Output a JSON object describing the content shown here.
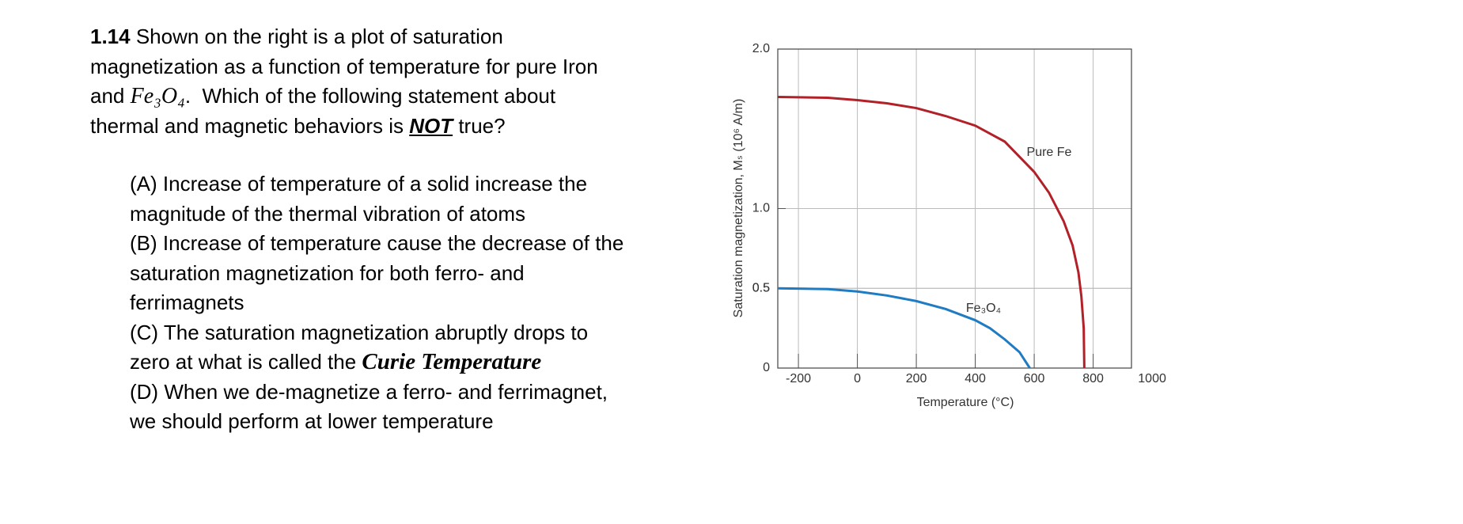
{
  "question": {
    "number": "1.14",
    "lines": [
      [
        " Shown on the right is a plot of saturation"
      ],
      [
        "magnetization as a function of temperature for pure Iron"
      ],
      [
        "and ",
        "Fe₃O₄",
        ".  Which of the following statement about"
      ],
      [
        "thermal and magnetic behaviors is ",
        "NOT",
        " true?"
      ]
    ]
  },
  "options": [
    [
      "(A) Increase of temperature of a solid increase the"
    ],
    [
      "magnitude of the thermal vibration of atoms"
    ],
    [
      "(B) Increase of temperature cause the decrease of the"
    ],
    [
      "saturation magnetization for both ferro- and"
    ],
    [
      "ferrimagnets"
    ],
    [
      "(C) The saturation magnetization abruptly drops to"
    ],
    [
      "zero at what is called the ",
      "Curie Temperature"
    ],
    [
      "(D) When we de-magnetize a ferro- and ferrimagnet,"
    ],
    [
      "we should perform at lower temperature"
    ]
  ],
  "chart_data": {
    "type": "line",
    "xlabel": "Temperature (°C)",
    "ylabel": "Saturation magnetization, Mₛ (10⁶ A/m)",
    "xlim": [
      -270,
      930
    ],
    "ylim": [
      0,
      2.0
    ],
    "xticks": [
      -200,
      0,
      200,
      400,
      600,
      800,
      1000
    ],
    "yticks": [
      0,
      0.5,
      {
        "value": 1.0,
        "label": "1.0"
      },
      0.5,
      {
        "value": 2.0,
        "label": "2.0"
      }
    ],
    "grid": true,
    "series": [
      {
        "name": "Pure Fe",
        "color": "#b22028",
        "x": [
          -270,
          -100,
          0,
          100,
          200,
          300,
          400,
          500,
          600,
          650,
          700,
          730,
          750,
          760,
          768,
          770
        ],
        "values": [
          1.7,
          1.695,
          1.68,
          1.66,
          1.63,
          1.58,
          1.52,
          1.42,
          1.23,
          1.1,
          0.92,
          0.77,
          0.6,
          0.45,
          0.25,
          0
        ]
      },
      {
        "name": "Fe₃O₄",
        "color": "#1f7bc2",
        "x": [
          -270,
          -100,
          0,
          100,
          200,
          300,
          400,
          450,
          500,
          550,
          585
        ],
        "values": [
          0.5,
          0.495,
          0.48,
          0.455,
          0.42,
          0.37,
          0.3,
          0.25,
          0.18,
          0.1,
          0
        ]
      }
    ]
  }
}
